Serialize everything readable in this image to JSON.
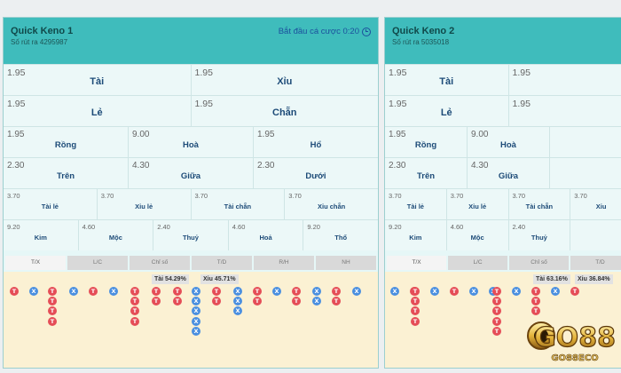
{
  "panels": [
    {
      "title": "Quick Keno 1",
      "draw": "Số rút ra 4295987",
      "countdown": "Bắt đầu cá cược 0:20",
      "rows": [
        [
          {
            "odds": "1.95",
            "label": "Tài"
          },
          {
            "odds": "1.95",
            "label": "Xỉu"
          }
        ],
        [
          {
            "odds": "1.95",
            "label": "Lẻ"
          },
          {
            "odds": "1.95",
            "label": "Chẵn"
          }
        ],
        [
          {
            "odds": "1.95",
            "label": "Rồng"
          },
          {
            "odds": "9.00",
            "label": "Hoà"
          },
          {
            "odds": "1.95",
            "label": "Hổ"
          }
        ],
        [
          {
            "odds": "2.30",
            "label": "Trên"
          },
          {
            "odds": "4.30",
            "label": "Giữa"
          },
          {
            "odds": "2.30",
            "label": "Dưới"
          }
        ],
        [
          {
            "odds": "3.70",
            "label": "Tài lẻ"
          },
          {
            "odds": "3.70",
            "label": "Xỉu lẻ"
          },
          {
            "odds": "3.70",
            "label": "Tài chẵn"
          },
          {
            "odds": "3.70",
            "label": "Xỉu chẵn"
          }
        ],
        [
          {
            "odds": "9.20",
            "label": "Kim"
          },
          {
            "odds": "4.60",
            "label": "Mộc"
          },
          {
            "odds": "2.40",
            "label": "Thuỷ"
          },
          {
            "odds": "4.60",
            "label": "Hoả"
          },
          {
            "odds": "9.20",
            "label": "Thổ"
          }
        ]
      ],
      "tabs": [
        "T/X",
        "L/C",
        "Chỉ số",
        "T/D",
        "R/H",
        "NH"
      ],
      "active_tab": 0,
      "stats": {
        "tai": "Tài 54.29%",
        "xiu": "Xỉu 45.71%"
      },
      "road": [
        [
          "T"
        ],
        [
          "X"
        ],
        [
          "T",
          "T",
          "T",
          "T"
        ],
        [
          "X"
        ],
        [
          "T"
        ],
        [
          "X"
        ],
        [
          "T",
          "T",
          "T",
          "T"
        ],
        [
          "T",
          "T"
        ],
        [
          "T",
          "T"
        ],
        [
          "X",
          "X",
          "X",
          "X",
          "X"
        ],
        [
          "T",
          "T"
        ],
        [
          "X",
          "X",
          "X"
        ],
        [
          "T",
          "T"
        ],
        [
          "X"
        ],
        [
          "T",
          "T"
        ],
        [
          "X",
          "X"
        ],
        [
          "T",
          "T"
        ],
        [
          "X"
        ]
      ]
    },
    {
      "title": "Quick Keno 2",
      "draw": "Số rút ra 5035018",
      "rows": [
        [
          {
            "odds": "1.95",
            "label": "Tài"
          },
          {
            "odds": "1.95",
            "label": ""
          }
        ],
        [
          {
            "odds": "1.95",
            "label": "Lẻ"
          },
          {
            "odds": "1.95",
            "label": ""
          }
        ],
        [
          {
            "odds": "1.95",
            "label": "Rồng"
          },
          {
            "odds": "9.00",
            "label": "Hoà"
          },
          {
            "odds": "",
            "label": ""
          }
        ],
        [
          {
            "odds": "2.30",
            "label": "Trên"
          },
          {
            "odds": "4.30",
            "label": "Giữa"
          },
          {
            "odds": "",
            "label": ""
          }
        ],
        [
          {
            "odds": "3.70",
            "label": "Tài lẻ"
          },
          {
            "odds": "3.70",
            "label": "Xỉu lẻ"
          },
          {
            "odds": "3.70",
            "label": "Tài chẵn"
          },
          {
            "odds": "3.70",
            "label": "Xỉu"
          }
        ],
        [
          {
            "odds": "9.20",
            "label": "Kim"
          },
          {
            "odds": "4.60",
            "label": "Mộc"
          },
          {
            "odds": "2.40",
            "label": "Thuỷ"
          },
          {
            "odds": "",
            "label": ""
          }
        ]
      ],
      "tabs": [
        "T/X",
        "L/C",
        "Chỉ số",
        "T/D"
      ],
      "active_tab": 0,
      "stats": {
        "tai": "Tài 63.16%",
        "xiu": "Xỉu 36.84%"
      },
      "road": [
        [
          "X"
        ],
        [
          "T"
        ],
        [
          "T",
          "T",
          "T",
          "T"
        ],
        [
          "X"
        ],
        [
          "T"
        ],
        [
          "X"
        ],
        [
          "X"
        ],
        [
          "T",
          "T",
          "T",
          "T",
          "T"
        ],
        [
          "X"
        ],
        [
          "T",
          "T",
          "T"
        ],
        [
          "X"
        ],
        [
          "T"
        ]
      ]
    }
  ],
  "logo": {
    "main": "GO88",
    "sub": "GO88ECO"
  },
  "colors": {
    "header": "#3fbcbc",
    "tai": "#e54d57",
    "xiu": "#4a8fe0",
    "board": "#fbf1d3"
  }
}
